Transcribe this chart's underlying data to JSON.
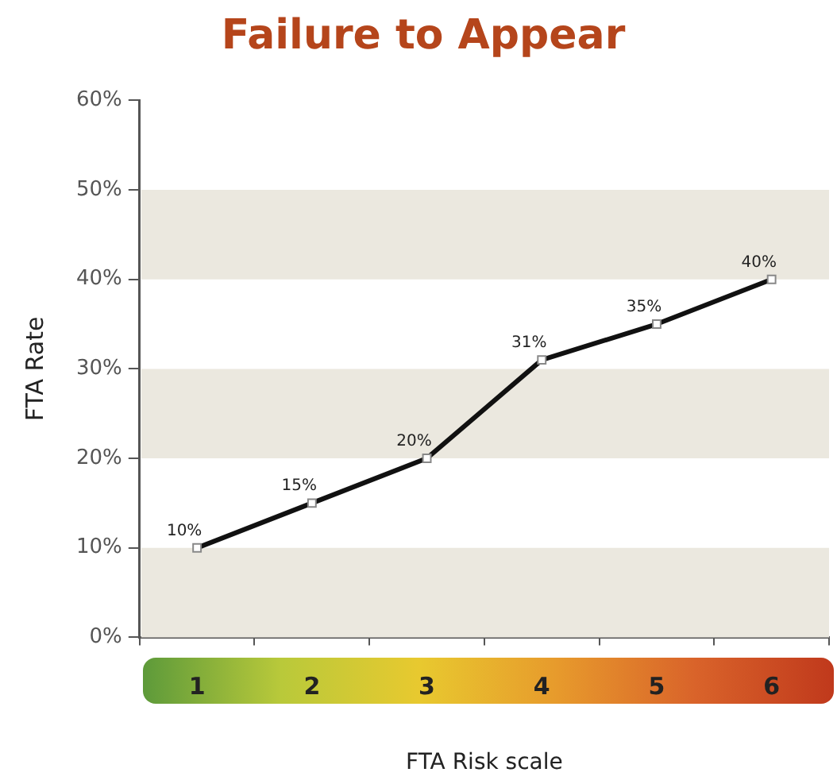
{
  "chart_data": {
    "type": "line",
    "title": "Failure to Appear",
    "xlabel": "FTA Risk scale",
    "ylabel": "FTA Rate",
    "categories": [
      "1",
      "2",
      "3",
      "4",
      "5",
      "6"
    ],
    "series": [
      {
        "color": "#111111",
        "values": [
          10,
          15,
          20,
          31,
          35,
          40
        ]
      }
    ],
    "ylim": [
      0,
      60
    ],
    "yticks": [
      {
        "value": 0,
        "label": "0%"
      },
      {
        "value": 10,
        "label": "10%"
      },
      {
        "value": 20,
        "label": "20%"
      },
      {
        "value": 30,
        "label": "30%"
      },
      {
        "value": 40,
        "label": "40%"
      },
      {
        "value": 50,
        "label": "50%"
      },
      {
        "value": 60,
        "label": "60%"
      }
    ],
    "bands": [
      {
        "axis": "y",
        "from": 0,
        "to": 10,
        "color": "#ebe8df"
      },
      {
        "axis": "y",
        "from": 20,
        "to": 30,
        "color": "#ebe8df"
      },
      {
        "axis": "y",
        "from": 40,
        "to": 50,
        "color": "#ebe8df"
      }
    ],
    "value_labels": [
      "10%",
      "15%",
      "20%",
      "31%",
      "35%",
      "40%"
    ],
    "grid": false,
    "legend": false,
    "marker": "square",
    "line_style": "solid"
  }
}
